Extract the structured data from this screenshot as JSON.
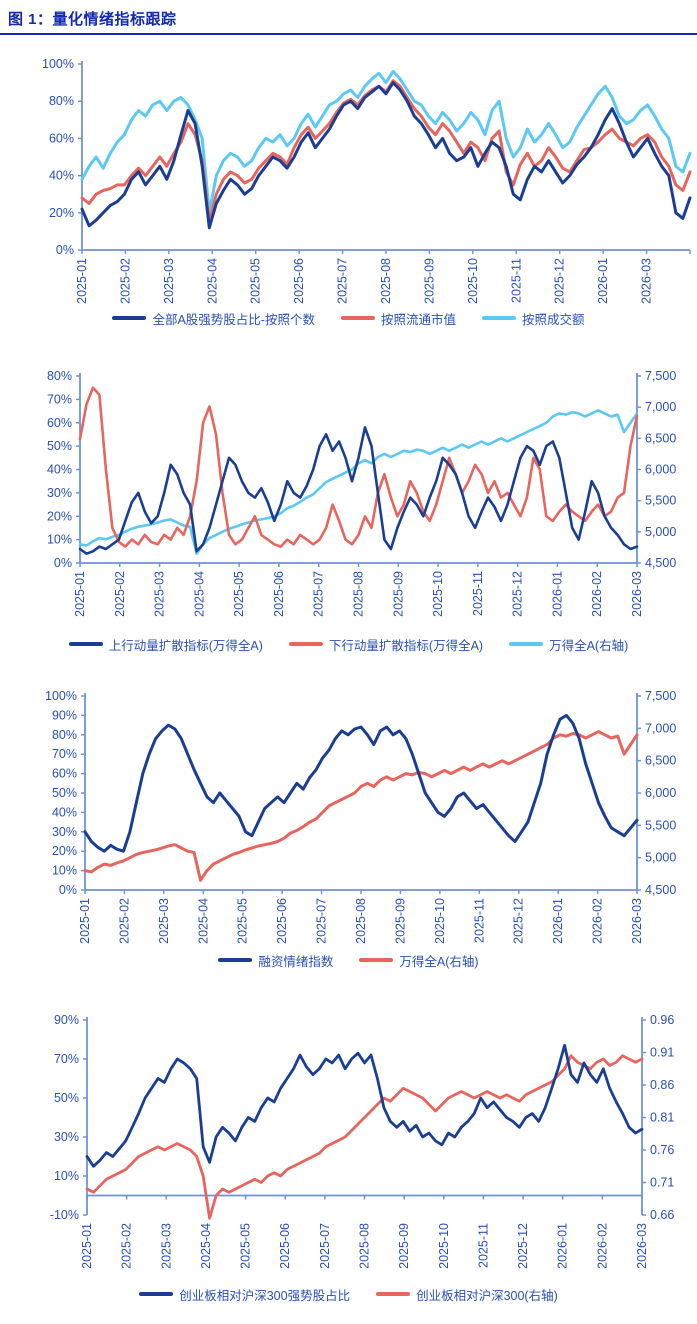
{
  "title": "图 1：量化情绪指标跟踪",
  "colors": {
    "title_blue": "#1329B1",
    "label_text": "#2850B4",
    "axis_line": "#6E93D6",
    "navy": "#1A3E94",
    "red": "#E8655E",
    "cyan": "#5BC9F3"
  },
  "chart_data": [
    {
      "type": "line",
      "x_labels": [
        "2025-01",
        "2025-02",
        "2025-03",
        "2025-04",
        "2025-05",
        "2025-06",
        "2025-07",
        "2025-08",
        "2025-09",
        "2025-10",
        "2025-11",
        "2025-12",
        "2026-01",
        "2026-03"
      ],
      "left_axis": {
        "min": 0,
        "max": 100,
        "step": 20,
        "format": "pct"
      },
      "right_axis": null,
      "series": [
        {
          "name": "全部A股强势股占比-按照个数",
          "color": "navy",
          "axis": "left",
          "values": [
            22,
            13,
            16,
            20,
            24,
            26,
            30,
            38,
            42,
            35,
            40,
            45,
            38,
            48,
            62,
            75,
            68,
            45,
            12,
            25,
            32,
            38,
            35,
            30,
            33,
            40,
            45,
            50,
            48,
            44,
            50,
            58,
            63,
            55,
            60,
            65,
            72,
            78,
            80,
            76,
            82,
            85,
            88,
            84,
            90,
            86,
            80,
            72,
            68,
            62,
            55,
            60,
            52,
            48,
            50,
            55,
            45,
            52,
            58,
            55,
            45,
            30,
            27,
            38,
            45,
            42,
            48,
            42,
            36,
            40,
            46,
            50,
            55,
            62,
            70,
            76,
            68,
            58,
            50,
            55,
            60,
            52,
            45,
            40,
            20,
            17,
            28
          ]
        },
        {
          "name": "按照流通市值",
          "color": "red",
          "axis": "left",
          "values": [
            28,
            25,
            30,
            32,
            33,
            35,
            35,
            40,
            44,
            40,
            45,
            50,
            45,
            52,
            58,
            68,
            62,
            48,
            15,
            30,
            38,
            42,
            40,
            36,
            38,
            44,
            48,
            52,
            50,
            46,
            55,
            62,
            66,
            60,
            64,
            68,
            74,
            79,
            81,
            78,
            83,
            86,
            88,
            85,
            91,
            88,
            82,
            76,
            72,
            66,
            62,
            68,
            64,
            58,
            52,
            58,
            55,
            48,
            60,
            64,
            42,
            35,
            46,
            52,
            45,
            48,
            55,
            50,
            44,
            42,
            48,
            54,
            55,
            58,
            62,
            65,
            60,
            58,
            56,
            60,
            62,
            58,
            50,
            45,
            35,
            32,
            42
          ]
        },
        {
          "name": "按照成交额",
          "color": "cyan",
          "axis": "left",
          "values": [
            38,
            45,
            50,
            44,
            52,
            58,
            62,
            70,
            75,
            72,
            78,
            80,
            75,
            80,
            82,
            78,
            70,
            60,
            20,
            40,
            48,
            52,
            50,
            45,
            48,
            55,
            60,
            58,
            62,
            56,
            60,
            68,
            73,
            66,
            72,
            78,
            80,
            84,
            86,
            82,
            88,
            92,
            95,
            90,
            96,
            92,
            86,
            80,
            78,
            72,
            68,
            74,
            70,
            64,
            68,
            74,
            70,
            62,
            75,
            80,
            60,
            50,
            55,
            65,
            58,
            62,
            68,
            62,
            55,
            58,
            66,
            72,
            78,
            84,
            88,
            82,
            72,
            68,
            70,
            75,
            78,
            72,
            65,
            60,
            45,
            42,
            52
          ]
        }
      ]
    },
    {
      "type": "line",
      "x_labels": [
        "2025-01",
        "2025-02",
        "2025-03",
        "2025-04",
        "2025-05",
        "2025-06",
        "2025-07",
        "2025-08",
        "2025-09",
        "2025-10",
        "2025-11",
        "2025-12",
        "2026-01",
        "2026-02",
        "2026-03"
      ],
      "left_axis": {
        "min": 0,
        "max": 80,
        "step": 10,
        "format": "pct"
      },
      "right_axis": {
        "min": 4500,
        "max": 7500,
        "step": 500,
        "format": "thousands"
      },
      "series": [
        {
          "name": "上行动量扩散指标(万得全A)",
          "color": "navy",
          "axis": "left",
          "values": [
            6,
            4,
            5,
            7,
            6,
            8,
            10,
            18,
            26,
            30,
            22,
            17,
            20,
            30,
            42,
            38,
            30,
            25,
            5,
            8,
            15,
            25,
            35,
            45,
            42,
            35,
            30,
            28,
            32,
            26,
            18,
            25,
            35,
            30,
            28,
            33,
            40,
            50,
            55,
            48,
            52,
            45,
            35,
            45,
            58,
            50,
            30,
            10,
            6,
            15,
            22,
            28,
            25,
            20,
            28,
            35,
            45,
            42,
            38,
            30,
            20,
            15,
            22,
            28,
            24,
            18,
            25,
            35,
            45,
            50,
            48,
            42,
            50,
            52,
            45,
            30,
            15,
            10,
            22,
            35,
            30,
            20,
            15,
            12,
            8,
            6,
            7
          ]
        },
        {
          "name": "下行动量扩散指标(万得全A)",
          "color": "red",
          "axis": "left",
          "values": [
            53,
            68,
            75,
            72,
            40,
            15,
            9,
            7,
            10,
            8,
            12,
            9,
            8,
            12,
            10,
            15,
            12,
            20,
            35,
            60,
            67,
            55,
            30,
            12,
            8,
            10,
            15,
            20,
            12,
            10,
            8,
            7,
            10,
            8,
            12,
            10,
            8,
            10,
            15,
            25,
            18,
            10,
            8,
            12,
            20,
            15,
            30,
            38,
            28,
            20,
            25,
            35,
            30,
            22,
            18,
            25,
            35,
            45,
            38,
            30,
            35,
            42,
            38,
            30,
            35,
            28,
            30,
            25,
            20,
            28,
            45,
            40,
            20,
            18,
            22,
            25,
            22,
            20,
            18,
            22,
            25,
            20,
            22,
            28,
            30,
            50,
            63
          ]
        },
        {
          "name": "万得全A(右轴)",
          "color": "cyan",
          "axis": "right",
          "values": [
            4800,
            4780,
            4850,
            4900,
            4880,
            4920,
            4950,
            5000,
            5050,
            5080,
            5100,
            5120,
            5150,
            5180,
            5200,
            5150,
            5100,
            5080,
            4650,
            4800,
            4900,
            4950,
            5000,
            5050,
            5080,
            5120,
            5150,
            5180,
            5200,
            5220,
            5250,
            5300,
            5380,
            5420,
            5480,
            5550,
            5600,
            5700,
            5800,
            5850,
            5900,
            5950,
            6000,
            6100,
            6150,
            6100,
            6200,
            6250,
            6200,
            6250,
            6300,
            6280,
            6320,
            6300,
            6250,
            6300,
            6350,
            6300,
            6350,
            6400,
            6350,
            6400,
            6450,
            6400,
            6450,
            6500,
            6450,
            6500,
            6550,
            6600,
            6650,
            6700,
            6750,
            6850,
            6900,
            6880,
            6920,
            6900,
            6850,
            6900,
            6950,
            6900,
            6850,
            6880,
            6600,
            6750,
            6900
          ]
        }
      ]
    },
    {
      "type": "line",
      "x_labels": [
        "2025-01",
        "2025-02",
        "2025-03",
        "2025-04",
        "2025-05",
        "2025-06",
        "2025-07",
        "2025-08",
        "2025-09",
        "2025-10",
        "2025-11",
        "2025-12",
        "2026-01",
        "2026-02",
        "2026-03"
      ],
      "left_axis": {
        "min": 0,
        "max": 100,
        "step": 10,
        "format": "pct"
      },
      "right_axis": {
        "min": 4500,
        "max": 7500,
        "step": 500,
        "format": "thousands"
      },
      "series": [
        {
          "name": "融资情绪指数",
          "color": "navy",
          "axis": "left",
          "values": [
            30,
            25,
            22,
            20,
            23,
            21,
            20,
            30,
            45,
            60,
            70,
            78,
            82,
            85,
            83,
            78,
            70,
            62,
            55,
            48,
            45,
            50,
            46,
            42,
            38,
            30,
            28,
            35,
            42,
            45,
            48,
            45,
            50,
            55,
            52,
            58,
            62,
            68,
            72,
            78,
            82,
            80,
            83,
            84,
            80,
            75,
            82,
            84,
            80,
            82,
            78,
            70,
            60,
            50,
            45,
            40,
            38,
            42,
            48,
            50,
            46,
            42,
            44,
            40,
            36,
            32,
            28,
            25,
            30,
            35,
            45,
            55,
            70,
            80,
            88,
            90,
            86,
            78,
            65,
            55,
            45,
            38,
            32,
            30,
            28,
            32,
            36
          ]
        },
        {
          "name": "万得全A(右轴)",
          "color": "red",
          "axis": "right",
          "values": [
            4800,
            4780,
            4850,
            4900,
            4880,
            4920,
            4950,
            5000,
            5050,
            5080,
            5100,
            5120,
            5150,
            5180,
            5200,
            5150,
            5100,
            5080,
            4650,
            4800,
            4900,
            4950,
            5000,
            5050,
            5080,
            5120,
            5150,
            5180,
            5200,
            5220,
            5250,
            5300,
            5380,
            5420,
            5480,
            5550,
            5600,
            5700,
            5800,
            5850,
            5900,
            5950,
            6000,
            6100,
            6150,
            6100,
            6200,
            6250,
            6200,
            6250,
            6300,
            6280,
            6320,
            6300,
            6250,
            6300,
            6350,
            6300,
            6350,
            6400,
            6350,
            6400,
            6450,
            6400,
            6450,
            6500,
            6450,
            6500,
            6550,
            6600,
            6650,
            6700,
            6750,
            6850,
            6900,
            6880,
            6920,
            6900,
            6850,
            6900,
            6950,
            6900,
            6850,
            6880,
            6600,
            6750,
            6900
          ]
        }
      ]
    },
    {
      "type": "line",
      "x_labels": [
        "2025-01",
        "2025-02",
        "2025-03",
        "2025-04",
        "2025-05",
        "2025-06",
        "2025-07",
        "2025-08",
        "2025-09",
        "2025-10",
        "2025-11",
        "2025-12",
        "2026-01",
        "2026-02",
        "2026-03"
      ],
      "left_axis": {
        "min": -10,
        "max": 90,
        "step": 20,
        "format": "pct",
        "cross": 0
      },
      "right_axis": {
        "min": 0.66,
        "max": 0.96,
        "step": 0.05,
        "format": "dec2"
      },
      "series": [
        {
          "name": "创业板相对沪深300强势股占比",
          "color": "navy",
          "axis": "left",
          "values": [
            20,
            15,
            18,
            22,
            20,
            24,
            28,
            35,
            42,
            50,
            55,
            60,
            58,
            65,
            70,
            68,
            65,
            60,
            25,
            17,
            30,
            35,
            32,
            28,
            35,
            40,
            38,
            45,
            50,
            48,
            55,
            60,
            65,
            72,
            66,
            62,
            65,
            70,
            68,
            72,
            65,
            70,
            73,
            68,
            72,
            60,
            45,
            38,
            35,
            38,
            33,
            36,
            30,
            32,
            28,
            26,
            32,
            30,
            35,
            38,
            42,
            50,
            45,
            48,
            44,
            40,
            38,
            35,
            40,
            42,
            38,
            45,
            55,
            65,
            77,
            62,
            58,
            68,
            62,
            58,
            65,
            55,
            48,
            42,
            35,
            32,
            34
          ]
        },
        {
          "name": "创业板相对沪深300(右轴)",
          "color": "red",
          "axis": "right",
          "values": [
            0.7,
            0.695,
            0.705,
            0.715,
            0.72,
            0.725,
            0.73,
            0.74,
            0.75,
            0.755,
            0.76,
            0.765,
            0.76,
            0.765,
            0.77,
            0.765,
            0.76,
            0.75,
            0.72,
            0.655,
            0.69,
            0.7,
            0.695,
            0.7,
            0.705,
            0.71,
            0.715,
            0.71,
            0.72,
            0.725,
            0.72,
            0.73,
            0.735,
            0.74,
            0.745,
            0.75,
            0.755,
            0.765,
            0.77,
            0.775,
            0.78,
            0.79,
            0.8,
            0.81,
            0.82,
            0.83,
            0.84,
            0.835,
            0.845,
            0.855,
            0.85,
            0.845,
            0.84,
            0.83,
            0.82,
            0.83,
            0.84,
            0.845,
            0.85,
            0.845,
            0.84,
            0.845,
            0.85,
            0.845,
            0.84,
            0.845,
            0.84,
            0.835,
            0.845,
            0.85,
            0.855,
            0.86,
            0.865,
            0.875,
            0.885,
            0.905,
            0.895,
            0.89,
            0.885,
            0.895,
            0.9,
            0.89,
            0.895,
            0.905,
            0.9,
            0.895,
            0.9
          ]
        }
      ]
    }
  ]
}
